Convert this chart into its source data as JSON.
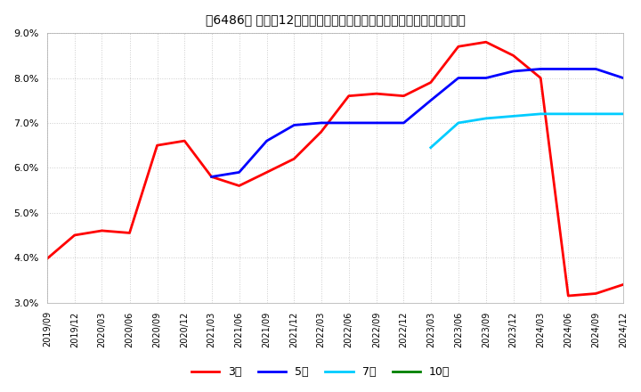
{
  "title": "［6486］ 売上高12か月移動合計の対前年同期増減率の標準偏差の推移",
  "ylabel": "",
  "ylim": [
    0.03,
    0.09
  ],
  "yticks": [
    0.03,
    0.04,
    0.05,
    0.06,
    0.07,
    0.08,
    0.09
  ],
  "background_color": "#ffffff",
  "plot_bg_color": "#ffffff",
  "grid_color": "#cccccc",
  "legend_labels": [
    "3年",
    "5年",
    "7年",
    "10年"
  ],
  "legend_colors": [
    "#ff0000",
    "#0000ff",
    "#00ccff",
    "#008000"
  ],
  "series_3y": {
    "dates": [
      "2019/09",
      "2019/12",
      "2020/03",
      "2020/06",
      "2020/09",
      "2020/12",
      "2021/03",
      "2021/06",
      "2021/09",
      "2021/12",
      "2022/03",
      "2022/06",
      "2022/09",
      "2022/12",
      "2023/03",
      "2023/06",
      "2023/09",
      "2023/12",
      "2024/03",
      "2024/06",
      "2024/09",
      "2024/12"
    ],
    "values": [
      0.0398,
      0.045,
      0.046,
      0.0455,
      0.065,
      0.066,
      0.058,
      0.056,
      0.059,
      0.062,
      0.068,
      0.076,
      0.0765,
      0.076,
      0.079,
      0.087,
      0.088,
      0.085,
      0.08,
      0.0315,
      0.032,
      0.034
    ],
    "color": "#ff0000",
    "linewidth": 2.0
  },
  "series_5y": {
    "dates": [
      "2021/03",
      "2021/06",
      "2021/09",
      "2021/12",
      "2022/03",
      "2022/06",
      "2022/09",
      "2022/12",
      "2023/03",
      "2023/06",
      "2023/09",
      "2023/12",
      "2024/03",
      "2024/06",
      "2024/09",
      "2024/12"
    ],
    "values": [
      0.058,
      0.059,
      0.066,
      0.0695,
      0.07,
      0.07,
      0.07,
      0.07,
      0.075,
      0.08,
      0.08,
      0.0815,
      0.082,
      0.082,
      0.082,
      0.08
    ],
    "color": "#0000ff",
    "linewidth": 2.0
  },
  "series_7y": {
    "dates": [
      "2023/03",
      "2023/06",
      "2023/09",
      "2023/12",
      "2024/03",
      "2024/06",
      "2024/09",
      "2024/12"
    ],
    "values": [
      0.0645,
      0.07,
      0.071,
      0.0715,
      0.072,
      0.072,
      0.072,
      0.072
    ],
    "color": "#00ccff",
    "linewidth": 2.0
  },
  "series_10y": {
    "dates": [],
    "values": [],
    "color": "#008000",
    "linewidth": 2.0
  },
  "xticklabels": [
    "2019/09",
    "2019/12",
    "2020/03",
    "2020/06",
    "2020/09",
    "2020/12",
    "2021/03",
    "2021/06",
    "2021/09",
    "2021/12",
    "2022/03",
    "2022/06",
    "2022/09",
    "2022/12",
    "2023/03",
    "2023/06",
    "2023/09",
    "2023/12",
    "2024/03",
    "2024/06",
    "2024/09",
    "2024/12"
  ]
}
